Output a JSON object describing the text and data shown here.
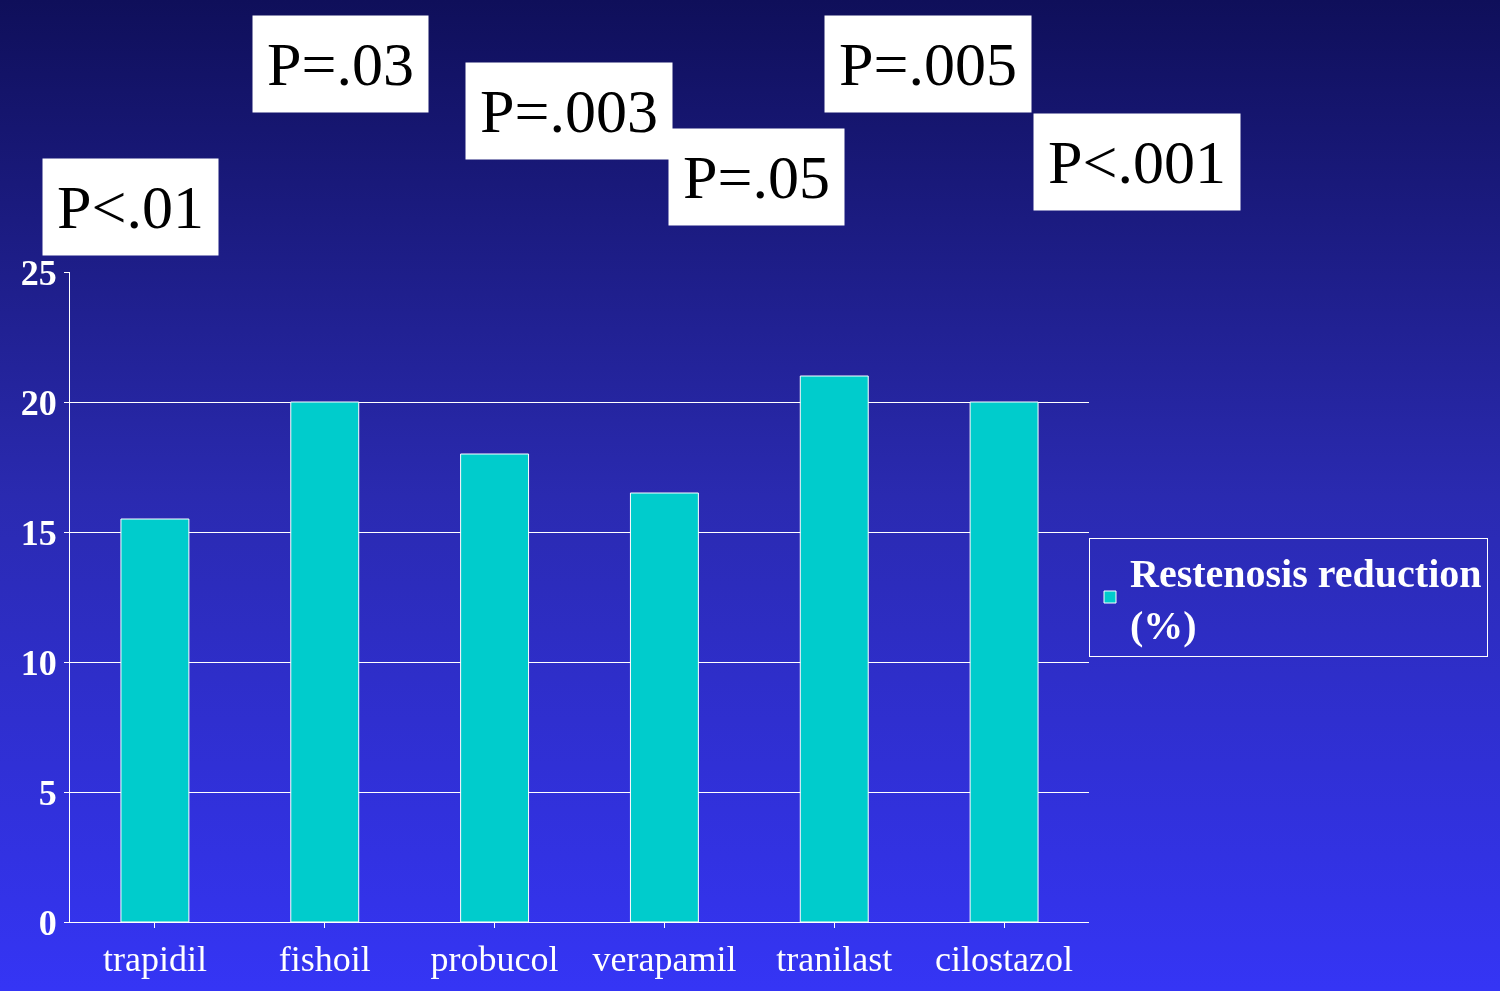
{
  "chart_data": {
    "type": "bar",
    "categories": [
      "trapidil",
      "fishoil",
      "probucol",
      "verapamil",
      "tranilast",
      "cilostazol"
    ],
    "series": [
      {
        "name": "Restenosis reduction (%)",
        "color": "#00cccc",
        "values": [
          15.5,
          20,
          18,
          16.5,
          21,
          20
        ]
      }
    ],
    "ylim": [
      0,
      25
    ],
    "yticks": [
      0,
      5,
      10,
      15,
      20,
      25
    ],
    "grid": "y",
    "legend": "right",
    "annotations": [
      "P<.01",
      "P=.03",
      "P=.003",
      "P=.05",
      "P=.005",
      "P<.001"
    ]
  }
}
